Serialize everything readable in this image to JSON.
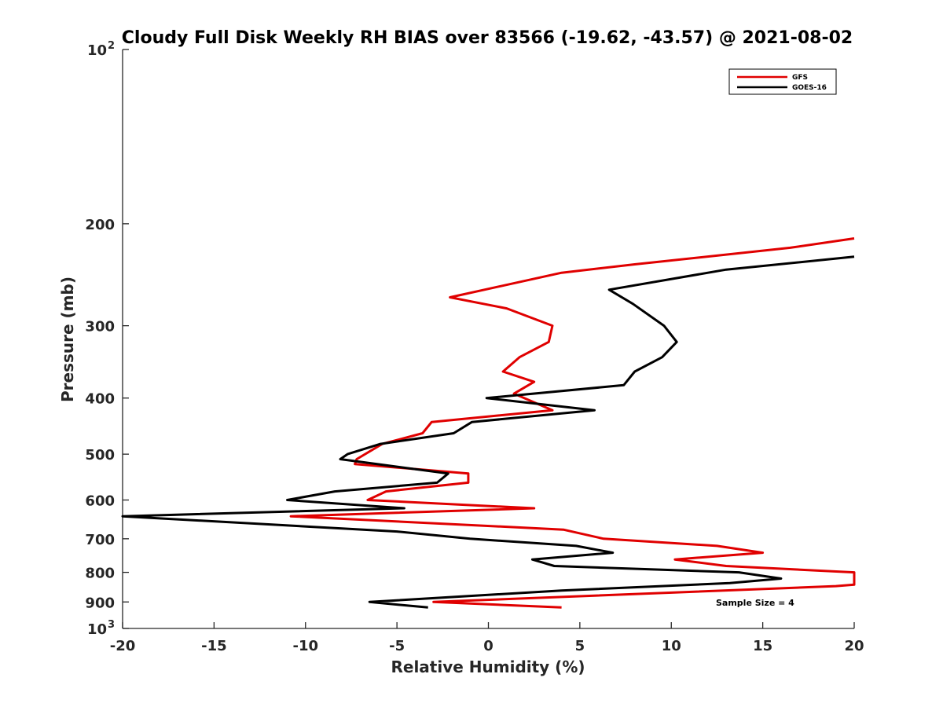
{
  "chart_data": {
    "type": "line",
    "title": "Cloudy Full Disk Weekly RH BIAS over 83566 (-19.62, -43.57) @ 2021-08-02",
    "xlabel": "Relative Humidity (%)",
    "ylabel": "Pressure (mb)",
    "xlim": [
      -20,
      20
    ],
    "ylim": [
      100,
      1000
    ],
    "y_scale": "log",
    "y_reversed": true,
    "x_ticks": [
      "-20",
      "-15",
      "-10",
      "-5",
      "0",
      "5",
      "10",
      "15",
      "20"
    ],
    "y_ticks": [
      {
        "value": 100,
        "label": "10",
        "exp": "2"
      },
      {
        "value": 200,
        "label": "200"
      },
      {
        "value": 300,
        "label": "300"
      },
      {
        "value": 400,
        "label": "400"
      },
      {
        "value": 500,
        "label": "500"
      },
      {
        "value": 600,
        "label": "600"
      },
      {
        "value": 700,
        "label": "700"
      },
      {
        "value": 800,
        "label": "800"
      },
      {
        "value": 900,
        "label": "900"
      },
      {
        "value": 1000,
        "label": "10",
        "exp": "3"
      }
    ],
    "legend_position": "top-right",
    "grid": false,
    "series": [
      {
        "name": "GFS",
        "color": "#e00000",
        "points": [
          [
            20.0,
            212
          ],
          [
            16.5,
            220
          ],
          [
            8.0,
            235
          ],
          [
            4.0,
            243
          ],
          [
            -2.1,
            268
          ],
          [
            1.0,
            280
          ],
          [
            3.5,
            300
          ],
          [
            3.3,
            320
          ],
          [
            1.7,
            340
          ],
          [
            0.8,
            360
          ],
          [
            2.5,
            375
          ],
          [
            1.4,
            393
          ],
          [
            3.5,
            420
          ],
          [
            -3.1,
            440
          ],
          [
            -3.6,
            460
          ],
          [
            -5.8,
            480
          ],
          [
            -7.2,
            510
          ],
          [
            -7.3,
            520
          ],
          [
            -1.1,
            540
          ],
          [
            -1.1,
            560
          ],
          [
            -5.6,
            580
          ],
          [
            -6.6,
            600
          ],
          [
            2.5,
            620
          ],
          [
            -10.8,
            640
          ],
          [
            4.1,
            675
          ],
          [
            6.3,
            700
          ],
          [
            12.5,
            720
          ],
          [
            15.0,
            740
          ],
          [
            10.2,
            760
          ],
          [
            13.0,
            780
          ],
          [
            20.0,
            800
          ],
          [
            20.0,
            840
          ],
          [
            19.0,
            845
          ],
          [
            -3.0,
            900
          ],
          [
            4.0,
            920
          ]
        ]
      },
      {
        "name": "GOES-16",
        "color": "#000000",
        "points": [
          [
            20.0,
            228
          ],
          [
            13.0,
            240
          ],
          [
            6.6,
            260
          ],
          [
            7.9,
            275
          ],
          [
            9.6,
            300
          ],
          [
            10.3,
            320
          ],
          [
            9.5,
            340
          ],
          [
            8.0,
            360
          ],
          [
            7.4,
            380
          ],
          [
            -0.1,
            400
          ],
          [
            5.8,
            420
          ],
          [
            -0.9,
            440
          ],
          [
            -1.9,
            460
          ],
          [
            -5.9,
            480
          ],
          [
            -7.7,
            500
          ],
          [
            -8.1,
            510
          ],
          [
            -2.2,
            540
          ],
          [
            -2.8,
            560
          ],
          [
            -8.4,
            580
          ],
          [
            -11.0,
            600
          ],
          [
            -4.6,
            620
          ],
          [
            -20.0,
            640
          ],
          [
            -5.0,
            680
          ],
          [
            -1.0,
            700
          ],
          [
            4.8,
            720
          ],
          [
            6.8,
            740
          ],
          [
            2.4,
            760
          ],
          [
            3.6,
            780
          ],
          [
            13.7,
            800
          ],
          [
            16.0,
            820
          ],
          [
            13.2,
            835
          ],
          [
            4.0,
            860
          ],
          [
            -6.5,
            900
          ],
          [
            -3.3,
            920
          ]
        ]
      }
    ],
    "annotations": [
      {
        "text": "Sample Size = 4"
      }
    ]
  }
}
